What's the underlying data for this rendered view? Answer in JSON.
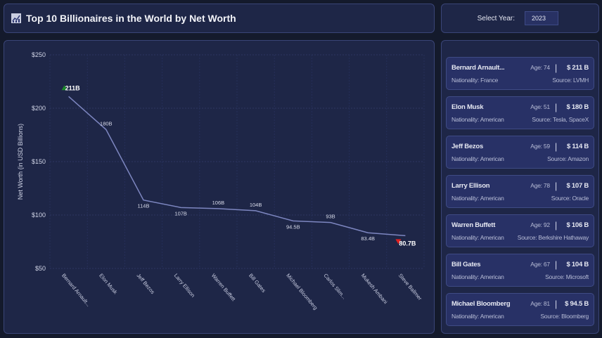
{
  "header": {
    "title": "Top 10 Billionaires in the World by Net Worth",
    "icon": "chart-icon"
  },
  "year_selector": {
    "label": "Select Year:",
    "value": "2023"
  },
  "chart_data": {
    "type": "line",
    "ylabel": "Net Worth (in USD Billions)",
    "ylim": [
      50,
      250
    ],
    "yticks": [
      "$50",
      "$100",
      "$150",
      "$200",
      "$250"
    ],
    "ytick_values": [
      50,
      100,
      150,
      200,
      250
    ],
    "categories": [
      "Bernard Arnault...",
      "Elon Musk",
      "Jeff Bezos",
      "Larry Ellison",
      "Warren Buffett",
      "Bill Gates",
      "Michael Bloomberg",
      "Carlos Slim...",
      "Mukesh Ambani",
      "Steve Ballmer"
    ],
    "values": [
      211,
      180,
      114,
      107,
      106,
      104,
      94.5,
      93,
      83.4,
      80.7
    ],
    "data_labels": [
      "211B",
      "180B",
      "114B",
      "107B",
      "106B",
      "104B",
      "94.5B",
      "93B",
      "83.4B",
      "80.7B"
    ],
    "max_color": "#1a8a2a",
    "min_color": "#e02020",
    "line_color": "#7d86c0",
    "grid": true
  },
  "cards": [
    {
      "name": "Bernard Arnault...",
      "age": "Age: 74",
      "net": "$ 211 B",
      "nat": "Nationality: France",
      "src": "Source: LVMH"
    },
    {
      "name": "Elon Musk",
      "age": "Age: 51",
      "net": "$ 180 B",
      "nat": "Nationality: American",
      "src": "Source: Tesla, SpaceX"
    },
    {
      "name": "Jeff Bezos",
      "age": "Age: 59",
      "net": "$ 114 B",
      "nat": "Nationality: American",
      "src": "Source: Amazon"
    },
    {
      "name": "Larry Ellison",
      "age": "Age: 78",
      "net": "$ 107 B",
      "nat": "Nationality: American",
      "src": "Source: Oracle"
    },
    {
      "name": "Warren Buffett",
      "age": "Age: 92",
      "net": "$ 106 B",
      "nat": "Nationality: American",
      "src": "Source: Berkshire Hathaway"
    },
    {
      "name": "Bill Gates",
      "age": "Age: 67",
      "net": "$ 104 B",
      "nat": "Nationality: American",
      "src": "Source: Microsoft"
    },
    {
      "name": "Michael Bloomberg",
      "age": "Age: 81",
      "net": "$ 94.5 B",
      "nat": "Nationality: American",
      "src": "Source: Bloomberg"
    }
  ],
  "card_separator": "|"
}
